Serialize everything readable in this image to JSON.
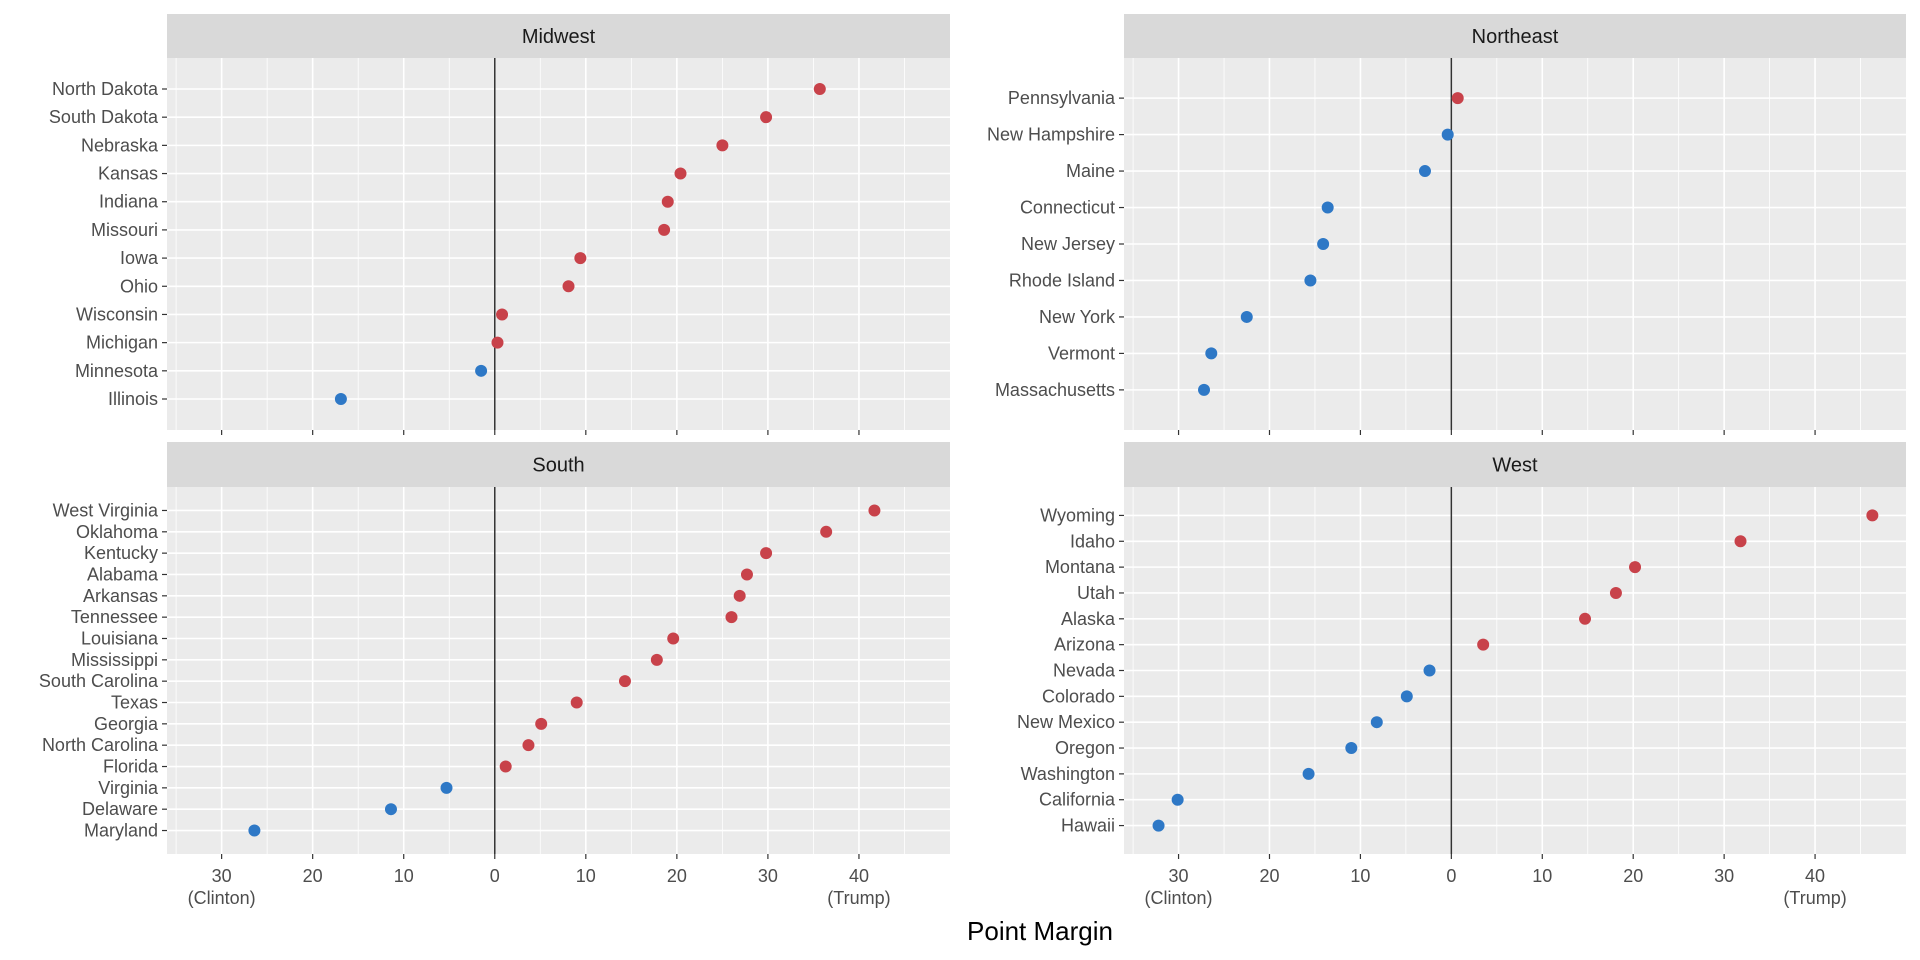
{
  "colors": {
    "panel_bg": "#EBEBEB",
    "strip_bg": "#D9D9D9",
    "grid": "#FFFFFF",
    "zero_line": "#333333",
    "trump_point": "#C8424A",
    "clinton_point": "#2E78C6"
  },
  "chart_data": {
    "type": "scatter",
    "subtype": "faceted dot plot",
    "xlabel": "Point Margin",
    "x_axis": {
      "range": [
        -36,
        50
      ],
      "reversed_negative_labels": true,
      "ticks": [
        -30,
        -20,
        -10,
        0,
        10,
        20,
        30,
        40
      ],
      "tick_labels": [
        "30",
        "20",
        "10",
        "0",
        "10",
        "20",
        "30",
        "40"
      ],
      "left_annotation": "(Clinton)",
      "right_annotation": "(Trump)"
    },
    "grid": true,
    "facets": [
      {
        "name": "Midwest",
        "states": [
          "North Dakota",
          "South Dakota",
          "Nebraska",
          "Kansas",
          "Indiana",
          "Missouri",
          "Iowa",
          "Ohio",
          "Wisconsin",
          "Michigan",
          "Minnesota",
          "Illinois"
        ],
        "values": [
          35.7,
          29.8,
          25.0,
          20.4,
          19.0,
          18.6,
          9.4,
          8.1,
          0.8,
          0.3,
          -1.5,
          -16.9
        ]
      },
      {
        "name": "Northeast",
        "states": [
          "Pennsylvania",
          "New Hampshire",
          "Maine",
          "Connecticut",
          "New Jersey",
          "Rhode Island",
          "New York",
          "Vermont",
          "Massachusetts"
        ],
        "values": [
          0.7,
          -0.4,
          -2.9,
          -13.6,
          -14.1,
          -15.5,
          -22.5,
          -26.4,
          -27.2
        ]
      },
      {
        "name": "South",
        "states": [
          "West Virginia",
          "Oklahoma",
          "Kentucky",
          "Alabama",
          "Arkansas",
          "Tennessee",
          "Louisiana",
          "Mississippi",
          "South Carolina",
          "Texas",
          "Georgia",
          "North Carolina",
          "Florida",
          "Virginia",
          "Delaware",
          "Maryland"
        ],
        "values": [
          41.7,
          36.4,
          29.8,
          27.7,
          26.9,
          26.0,
          19.6,
          17.8,
          14.3,
          9.0,
          5.1,
          3.7,
          1.2,
          -5.3,
          -11.4,
          -26.4
        ]
      },
      {
        "name": "West",
        "states": [
          "Wyoming",
          "Idaho",
          "Montana",
          "Utah",
          "Alaska",
          "Arizona",
          "Nevada",
          "Colorado",
          "New Mexico",
          "Oregon",
          "Washington",
          "California",
          "Hawaii"
        ],
        "values": [
          46.3,
          31.8,
          20.2,
          18.1,
          14.7,
          3.5,
          -2.4,
          -4.9,
          -8.2,
          -11.0,
          -15.7,
          -30.1,
          -32.2
        ]
      }
    ]
  }
}
